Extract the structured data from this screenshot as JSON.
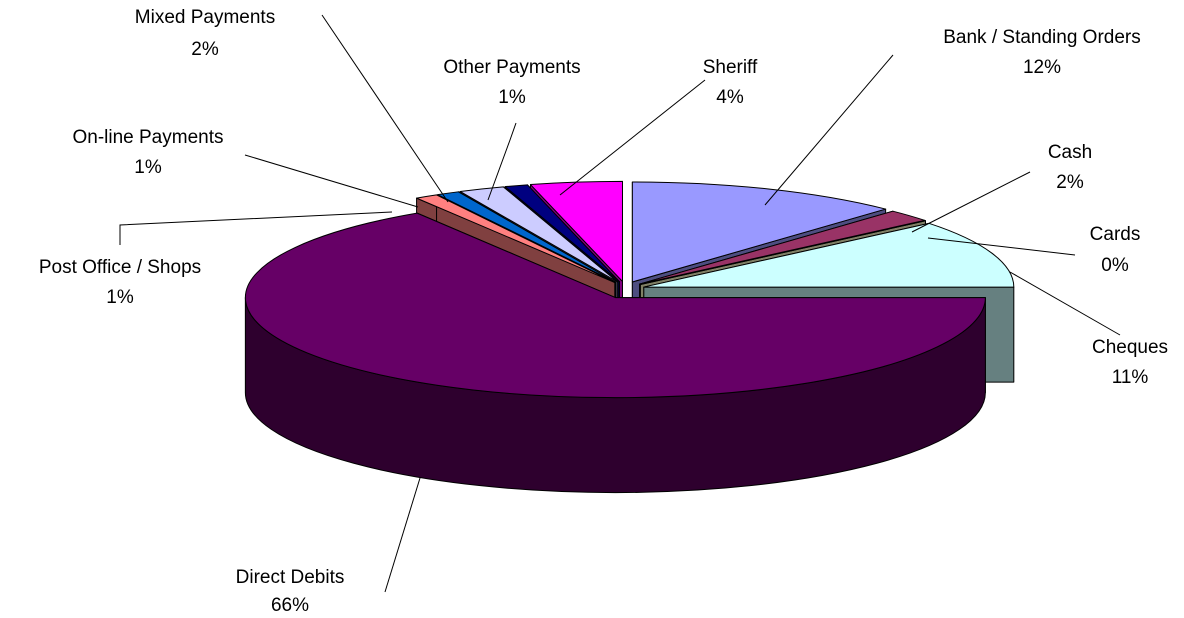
{
  "chart_data": {
    "type": "pie3d",
    "categories": [
      "Bank / Standing Orders",
      "Cash",
      "Cards",
      "Cheques",
      "Direct Debits",
      "Post Office / Shops",
      "On-line Payments",
      "Mixed Payments",
      "Other Payments",
      "Sheriff"
    ],
    "values": [
      12,
      2,
      0,
      11,
      66,
      1,
      1,
      2,
      1,
      4
    ],
    "value_labels": [
      "12%",
      "2%",
      "0%",
      "11%",
      "66%",
      "1%",
      "1%",
      "2%",
      "1%",
      "4%"
    ],
    "colors": [
      "#9999ff",
      "#993366",
      "#ffffcc",
      "#ccffff",
      "#660066",
      "#ff8080",
      "#0066cc",
      "#ccccff",
      "#000080",
      "#ff00ff"
    ]
  }
}
